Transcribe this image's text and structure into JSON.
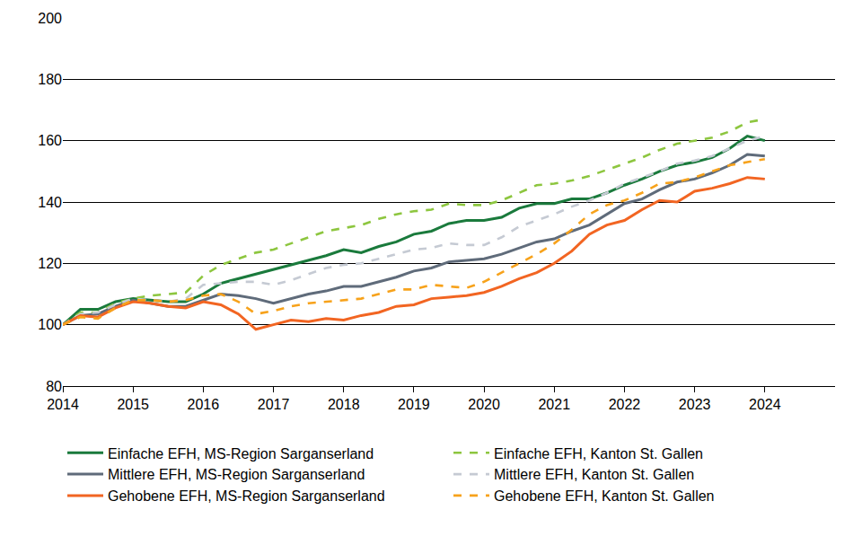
{
  "chart_data": {
    "type": "line",
    "x": [
      2014,
      2014.25,
      2014.5,
      2014.75,
      2015,
      2015.25,
      2015.5,
      2015.75,
      2016,
      2016.25,
      2016.5,
      2016.75,
      2017,
      2017.25,
      2017.5,
      2017.75,
      2018,
      2018.25,
      2018.5,
      2018.75,
      2019,
      2019.25,
      2019.5,
      2019.75,
      2020,
      2020.25,
      2020.5,
      2020.75,
      2021,
      2021.25,
      2021.5,
      2021.75,
      2022,
      2022.25,
      2022.5,
      2022.75,
      2023,
      2023.25,
      2023.5,
      2023.75,
      2024
    ],
    "xlim": [
      2014,
      2025
    ],
    "xticks": [
      2014,
      2015,
      2016,
      2017,
      2018,
      2019,
      2020,
      2021,
      2022,
      2023,
      2024
    ],
    "ylim": [
      80,
      200
    ],
    "yticks": [
      80,
      100,
      120,
      140,
      160,
      180,
      200
    ],
    "grid": true,
    "legend": "bottom",
    "series": [
      {
        "name": "Einfache EFH, MS-Region Sarganserland",
        "color": "#1a7a3c",
        "line_style": "solid",
        "values": [
          100,
          105,
          105,
          107.5,
          108.5,
          108,
          107.5,
          107.5,
          110,
          113.5,
          115,
          116.5,
          118,
          119.5,
          121,
          122.5,
          124.5,
          123.5,
          125.5,
          127,
          129.5,
          130.5,
          133,
          134,
          134,
          135,
          138,
          139.5,
          139.5,
          141,
          141,
          143,
          145.5,
          147.5,
          150,
          152,
          153,
          154.5,
          157.5,
          161.5,
          160
        ]
      },
      {
        "name": "Einfache EFH, Kanton St. Gallen",
        "color": "#8dc63f",
        "line_style": "dash",
        "values": [
          100,
          104,
          104,
          107,
          108.5,
          109.5,
          110,
          110.5,
          116,
          119.5,
          121.5,
          123.5,
          124.5,
          126.5,
          128.5,
          130.5,
          131.5,
          132.5,
          134.5,
          136,
          137,
          137.5,
          139.5,
          139,
          139,
          140.5,
          143,
          145.5,
          146,
          147,
          148.5,
          150.5,
          152.5,
          154.5,
          157,
          159,
          160,
          161,
          163,
          166,
          167
        ]
      },
      {
        "name": "Mittlere EFH, MS-Region Sarganserland",
        "color": "#5f6b7a",
        "line_style": "solid",
        "values": [
          100,
          103,
          103.5,
          106,
          108,
          107,
          106,
          106,
          108,
          110,
          109.5,
          108.5,
          107,
          108.5,
          110,
          111,
          112.5,
          112.5,
          114,
          115.5,
          117.5,
          118.5,
          120.5,
          121,
          121.5,
          123,
          125,
          127,
          128,
          130.5,
          132.5,
          136,
          139.5,
          141,
          144,
          146.5,
          147.5,
          149.5,
          152,
          155.5,
          155
        ]
      },
      {
        "name": "Mittlere EFH, Kanton St. Gallen",
        "color": "#c5cad3",
        "line_style": "dash",
        "values": [
          100,
          103.5,
          104,
          106.5,
          108.5,
          108,
          107.5,
          108.5,
          113,
          113.5,
          114,
          114,
          113,
          114.5,
          116.5,
          118.5,
          119.5,
          120,
          121.5,
          123,
          124.5,
          125,
          126.5,
          126,
          126,
          128.5,
          132,
          134,
          136,
          138.5,
          140.5,
          143,
          146,
          148,
          150,
          152.5,
          153.5,
          155,
          157.5,
          160,
          161.5
        ]
      },
      {
        "name": "Gehobene EFH, MS-Region Sarganserland",
        "color": "#f26522",
        "line_style": "solid",
        "values": [
          100,
          103,
          102.5,
          105.5,
          107.5,
          107,
          106,
          105.5,
          107.5,
          106.5,
          103.5,
          98.5,
          100,
          101.5,
          101,
          102,
          101.5,
          103,
          104,
          106,
          106.5,
          108.5,
          109,
          109.5,
          110.5,
          112.5,
          115,
          117,
          120,
          124,
          129.5,
          132.5,
          134,
          137.5,
          140.5,
          140,
          143.5,
          144.5,
          146,
          148,
          147.5
        ]
      },
      {
        "name": "Gehobene EFH, Kanton St. Gallen",
        "color": "#f7a21b",
        "line_style": "dash",
        "values": [
          100,
          102.5,
          102,
          105.5,
          108,
          108,
          107.5,
          108,
          109.5,
          110,
          107.5,
          103.5,
          104.5,
          106,
          107,
          107.5,
          108,
          108.5,
          110,
          111.5,
          111.5,
          113,
          112.5,
          112,
          114,
          117,
          120,
          123,
          126.5,
          131,
          136,
          139,
          140.5,
          143,
          146,
          146.5,
          148,
          150,
          152,
          153,
          154
        ]
      }
    ]
  }
}
